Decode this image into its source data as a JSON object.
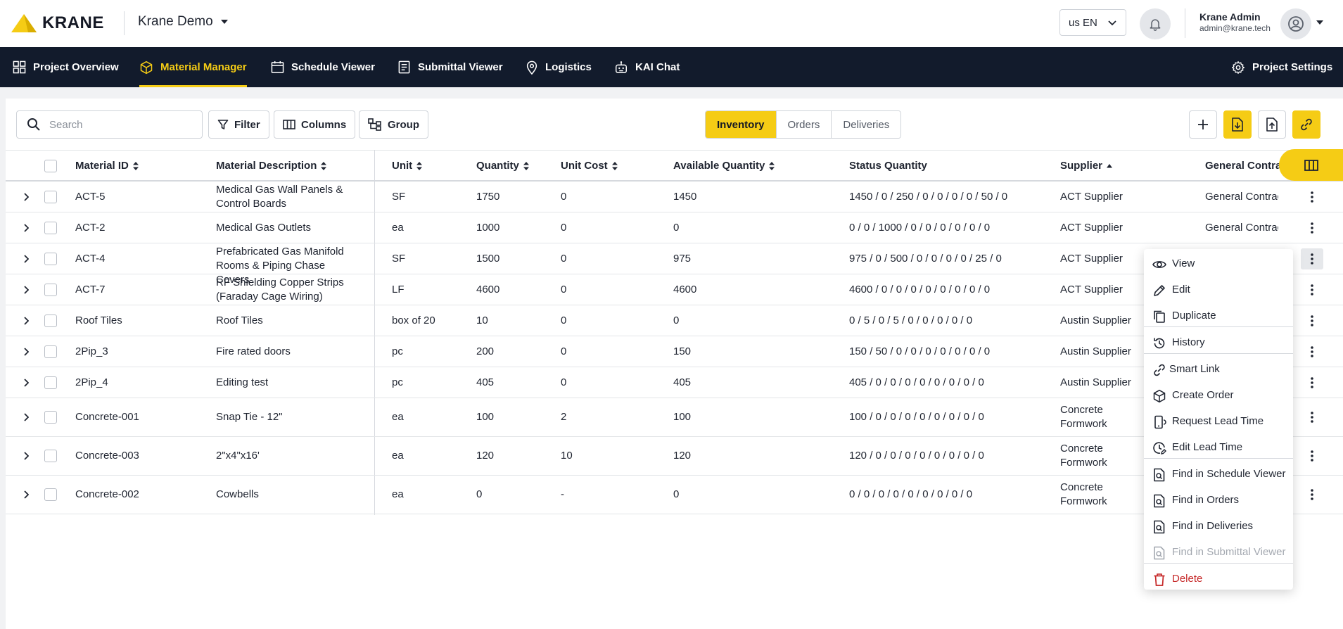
{
  "header": {
    "logo_text": "KRANE",
    "project_name": "Krane Demo",
    "language": "us EN",
    "user_name": "Krane Admin",
    "user_email": "admin@krane.tech"
  },
  "nav": {
    "items": [
      {
        "label": "Project Overview",
        "icon": "grid-icon"
      },
      {
        "label": "Material Manager",
        "icon": "cube-icon",
        "active": true
      },
      {
        "label": "Schedule Viewer",
        "icon": "calendar-icon"
      },
      {
        "label": "Submittal Viewer",
        "icon": "document-icon"
      },
      {
        "label": "Logistics",
        "icon": "map-pin-icon"
      },
      {
        "label": "KAI Chat",
        "icon": "robot-icon"
      }
    ],
    "settings_label": "Project Settings"
  },
  "toolbar": {
    "search_placeholder": "Search",
    "filter_label": "Filter",
    "columns_label": "Columns",
    "group_label": "Group",
    "tabs": [
      "Inventory",
      "Orders",
      "Deliveries"
    ],
    "active_tab": "Inventory"
  },
  "table": {
    "columns": [
      "Material ID",
      "Material Description",
      "Unit",
      "Quantity",
      "Unit Cost",
      "Available Quantity",
      "Status Quantity",
      "Supplier",
      "General Contra"
    ],
    "rows": [
      {
        "id": "ACT-5",
        "desc": "Medical Gas Wall Panels & Control Boards",
        "unit": "SF",
        "qty": "1750",
        "cost": "0",
        "avail": "1450",
        "status": "1450 / 0 / 250 / 0 / 0 / 0 / 0 / 50 / 0",
        "supplier": "ACT Supplier",
        "gc": "General Contractor"
      },
      {
        "id": "ACT-2",
        "desc": "Medical Gas Outlets",
        "unit": "ea",
        "qty": "1000",
        "cost": "0",
        "avail": "0",
        "status": "0 / 0 / 1000 / 0 / 0 / 0 / 0 / 0 / 0",
        "supplier": "ACT Supplier",
        "gc": "General Contractor"
      },
      {
        "id": "ACT-4",
        "desc": "Prefabricated Gas Manifold Rooms & Piping Chase Covers",
        "unit": "SF",
        "qty": "1500",
        "cost": "0",
        "avail": "975",
        "status": "975 / 0 / 500 / 0 / 0 / 0 / 0 / 25 / 0",
        "supplier": "ACT Supplier",
        "gc": ""
      },
      {
        "id": "ACT-7",
        "desc": "RF Shielding Copper Strips (Faraday Cage Wiring)",
        "unit": "LF",
        "qty": "4600",
        "cost": "0",
        "avail": "4600",
        "status": "4600 / 0 / 0 / 0 / 0 / 0 / 0 / 0 / 0",
        "supplier": "ACT Supplier",
        "gc": ""
      },
      {
        "id": "Roof Tiles",
        "desc": "Roof Tiles",
        "unit": "box of 20",
        "qty": "10",
        "cost": "0",
        "avail": "0",
        "status": "0 / 5 / 0 / 5 / 0 / 0 / 0 / 0 / 0",
        "supplier": "Austin Supplier",
        "gc": ""
      },
      {
        "id": "2Pip_3",
        "desc": "Fire rated doors",
        "unit": "pc",
        "qty": "200",
        "cost": "0",
        "avail": "150",
        "status": "150 / 50 / 0 / 0 / 0 / 0 / 0 / 0 / 0",
        "supplier": "Austin Supplier",
        "gc": ""
      },
      {
        "id": "2Pip_4",
        "desc": "Editing test",
        "unit": "pc",
        "qty": "405",
        "cost": "0",
        "avail": "405",
        "status": "405 / 0 / 0 / 0 / 0 / 0 / 0 / 0 / 0",
        "supplier": "Austin Supplier",
        "gc": ""
      },
      {
        "id": "Concrete-001",
        "desc": "Snap Tie - 12\"",
        "unit": "ea",
        "qty": "100",
        "cost": "2",
        "avail": "100",
        "status": "100 / 0 / 0 / 0 / 0 / 0 / 0 / 0 / 0",
        "supplier": "Concrete Formwork Supplier",
        "gc": ""
      },
      {
        "id": "Concrete-003",
        "desc": "2\"x4\"x16'",
        "unit": "ea",
        "qty": "120",
        "cost": "10",
        "avail": "120",
        "status": "120 / 0 / 0 / 0 / 0 / 0 / 0 / 0 / 0",
        "supplier": "Concrete Formwork Supplier",
        "gc": ""
      },
      {
        "id": "Concrete-002",
        "desc": "Cowbells",
        "unit": "ea",
        "qty": "0",
        "cost": "-",
        "avail": "0",
        "status": "0 / 0 / 0 / 0 / 0 / 0 / 0 / 0 / 0",
        "supplier": "Concrete Formwork Supplier",
        "gc": ""
      }
    ]
  },
  "context_menu": {
    "items": [
      {
        "label": "View",
        "icon": "eye-icon"
      },
      {
        "label": "Edit",
        "icon": "pencil-icon"
      },
      {
        "label": "Duplicate",
        "icon": "copy-icon"
      },
      {
        "label": "History",
        "icon": "history-icon"
      },
      {
        "label": "Smart Link",
        "icon": "link-icon"
      },
      {
        "label": "Create Order",
        "icon": "box-icon"
      },
      {
        "label": "Request Lead Time",
        "icon": "phone-icon"
      },
      {
        "label": "Edit Lead Time",
        "icon": "clock-edit-icon"
      },
      {
        "label": "Find in Schedule Viewer",
        "icon": "find-doc-icon"
      },
      {
        "label": "Find in Orders",
        "icon": "find-doc-icon"
      },
      {
        "label": "Find in Deliveries",
        "icon": "find-doc-icon"
      },
      {
        "label": "Find in Submittal Viewer",
        "icon": "find-doc-icon",
        "disabled": true
      },
      {
        "label": "Delete",
        "icon": "trash-icon",
        "danger": true
      }
    ]
  },
  "colors": {
    "accent": "#f5cc15",
    "nav_bg": "#121b2c",
    "danger": "#c62828"
  }
}
